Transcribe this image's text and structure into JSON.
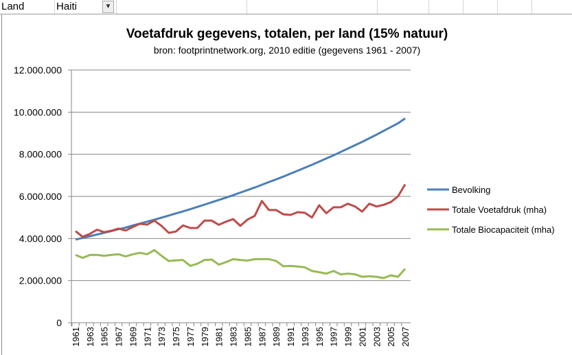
{
  "sheet": {
    "filter_label": "Land",
    "filter_value": "Haiti",
    "filter_icon": "funnel-icon"
  },
  "chart_data": {
    "type": "line",
    "title": "Voetafdruk gegevens, totalen, per land (15% natuur)",
    "subtitle": "bron: footprintnetwork.org, 2010 editie (gegevens 1961 - 2007)",
    "xlabel": "",
    "ylabel": "",
    "ylim": [
      0,
      12000000
    ],
    "yticks": [
      "0",
      "2.000.000",
      "4.000.000",
      "6.000.000",
      "8.000.000",
      "10.000.000",
      "12.000.000"
    ],
    "grid": true,
    "legend": "right",
    "x": [
      1961,
      1962,
      1963,
      1964,
      1965,
      1966,
      1967,
      1968,
      1969,
      1970,
      1971,
      1972,
      1973,
      1974,
      1975,
      1976,
      1977,
      1978,
      1979,
      1980,
      1981,
      1982,
      1983,
      1984,
      1985,
      1986,
      1987,
      1988,
      1989,
      1990,
      1991,
      1992,
      1993,
      1994,
      1995,
      1996,
      1997,
      1998,
      1999,
      2000,
      2001,
      2002,
      2003,
      2004,
      2005,
      2006,
      2007
    ],
    "xticks": [
      "1961",
      "1963",
      "1965",
      "1967",
      "1969",
      "1971",
      "1973",
      "1975",
      "1977",
      "1979",
      "1981",
      "1983",
      "1985",
      "1987",
      "1989",
      "1991",
      "1993",
      "1995",
      "1997",
      "1999",
      "2001",
      "2003",
      "2005",
      "2007"
    ],
    "series": [
      {
        "name": "Bevolking",
        "color": "#4a7ebb",
        "values": [
          3950000,
          4030000,
          4110000,
          4190000,
          4270000,
          4350000,
          4440000,
          4520000,
          4620000,
          4710000,
          4800000,
          4890000,
          4990000,
          5090000,
          5190000,
          5290000,
          5390000,
          5500000,
          5610000,
          5720000,
          5830000,
          5940000,
          6060000,
          6180000,
          6300000,
          6420000,
          6550000,
          6680000,
          6810000,
          6940000,
          7080000,
          7220000,
          7360000,
          7500000,
          7650000,
          7800000,
          7950000,
          8110000,
          8270000,
          8430000,
          8590000,
          8760000,
          8930000,
          9110000,
          9290000,
          9470000,
          9700000
        ]
      },
      {
        "name": "Totale Voetafdruk (mha)",
        "color": "#be4b48",
        "values": [
          4350000,
          4080000,
          4220000,
          4420000,
          4300000,
          4370000,
          4470000,
          4380000,
          4550000,
          4700000,
          4660000,
          4850000,
          4600000,
          4270000,
          4330000,
          4620000,
          4500000,
          4500000,
          4850000,
          4850000,
          4650000,
          4800000,
          4920000,
          4600000,
          4900000,
          5070000,
          5780000,
          5350000,
          5350000,
          5150000,
          5120000,
          5250000,
          5220000,
          5000000,
          5580000,
          5200000,
          5480000,
          5480000,
          5650000,
          5520000,
          5280000,
          5650000,
          5520000,
          5600000,
          5730000,
          6000000,
          6570000
        ]
      },
      {
        "name": "Totale Biocapaciteit (mha)",
        "color": "#98b954",
        "values": [
          3220000,
          3080000,
          3220000,
          3220000,
          3180000,
          3220000,
          3250000,
          3150000,
          3250000,
          3320000,
          3250000,
          3450000,
          3180000,
          2930000,
          2960000,
          2980000,
          2700000,
          2800000,
          2980000,
          3000000,
          2760000,
          2880000,
          3020000,
          2980000,
          2950000,
          3020000,
          3020000,
          3020000,
          2930000,
          2680000,
          2700000,
          2670000,
          2630000,
          2460000,
          2400000,
          2330000,
          2460000,
          2300000,
          2330000,
          2300000,
          2180000,
          2210000,
          2180000,
          2120000,
          2250000,
          2180000,
          2560000
        ]
      }
    ]
  }
}
